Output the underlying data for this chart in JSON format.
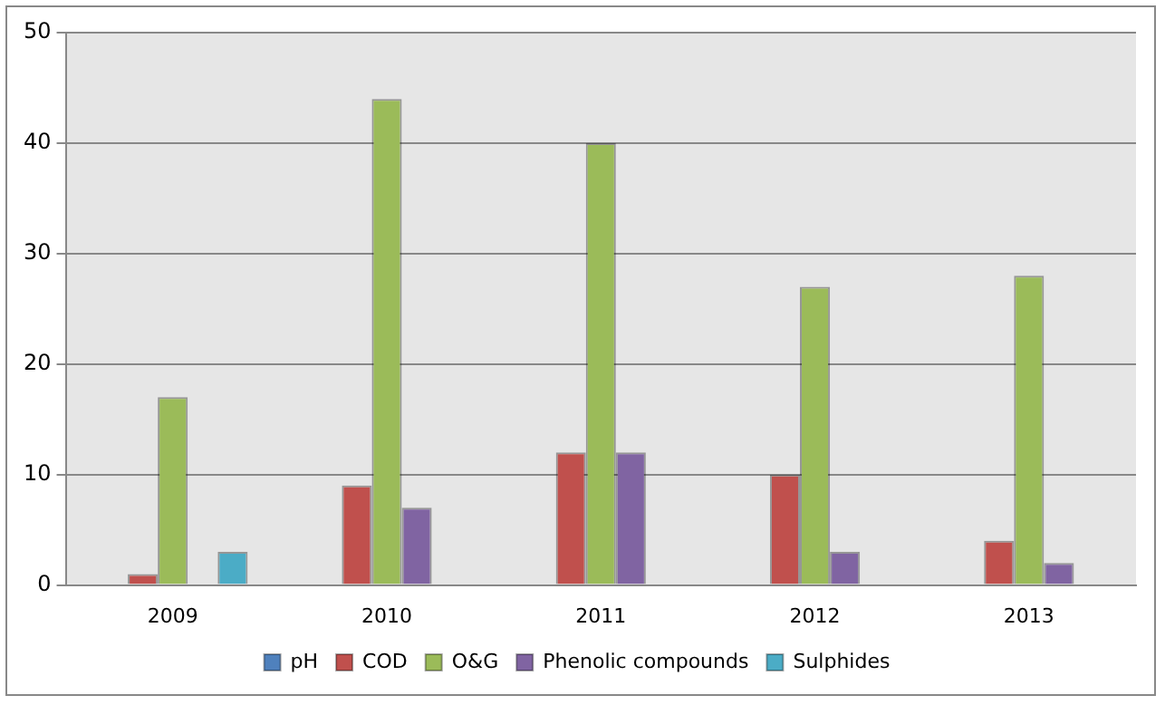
{
  "chart_data": {
    "type": "bar",
    "categories": [
      "2009",
      "2010",
      "2011",
      "2012",
      "2013"
    ],
    "series": [
      {
        "name": "pH",
        "color": "#4f81bd",
        "values": [
          0,
          0,
          0,
          0,
          0
        ]
      },
      {
        "name": "COD",
        "color": "#c0504d",
        "values": [
          1,
          9,
          12,
          10,
          4
        ]
      },
      {
        "name": "O&G",
        "color": "#9bbb59",
        "values": [
          17,
          44,
          40,
          27,
          28
        ]
      },
      {
        "name": "Phenolic compounds",
        "color": "#8064a2",
        "values": [
          0,
          7,
          12,
          3,
          2
        ]
      },
      {
        "name": "Sulphides",
        "color": "#4bacc6",
        "values": [
          3,
          0,
          0,
          0,
          0
        ]
      }
    ],
    "ylim": [
      0,
      50
    ],
    "yticks": [
      0,
      10,
      20,
      30,
      40,
      50
    ],
    "grid": "y",
    "legend": "bottom"
  }
}
